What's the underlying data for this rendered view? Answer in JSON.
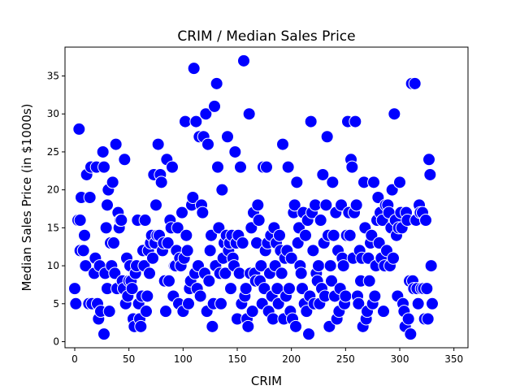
{
  "chart_data": {
    "type": "scatter",
    "title": "CRIM / Median Sales Price",
    "xlabel": "CRIM",
    "ylabel": "Median Sales Price (in $1000s)",
    "xlim": [
      -9,
      363
    ],
    "ylim": [
      -0.8,
      38.8
    ],
    "xticks": [
      0,
      50,
      100,
      150,
      200,
      250,
      300,
      350
    ],
    "yticks": [
      0,
      5,
      10,
      15,
      20,
      25,
      30,
      35
    ],
    "grid": false,
    "legend": "none",
    "marker_color": "#0000ff",
    "marker_edge": "#ffffff",
    "series": [
      {
        "points": [
          [
            0,
            7
          ],
          [
            1,
            5
          ],
          [
            3,
            16
          ],
          [
            4,
            28
          ],
          [
            5,
            16
          ],
          [
            5,
            12
          ],
          [
            6,
            19
          ],
          [
            8,
            12
          ],
          [
            9,
            14
          ],
          [
            10,
            10
          ],
          [
            11,
            22
          ],
          [
            13,
            5
          ],
          [
            14,
            19
          ],
          [
            15,
            23
          ],
          [
            16,
            5
          ],
          [
            18,
            9
          ],
          [
            19,
            11
          ],
          [
            20,
            23
          ],
          [
            21,
            5
          ],
          [
            22,
            3
          ],
          [
            23,
            10
          ],
          [
            24,
            4
          ],
          [
            26,
            25
          ],
          [
            27,
            1
          ],
          [
            27,
            23
          ],
          [
            28,
            9
          ],
          [
            29,
            15
          ],
          [
            30,
            18
          ],
          [
            30,
            7
          ],
          [
            31,
            20
          ],
          [
            32,
            4
          ],
          [
            33,
            13
          ],
          [
            34,
            10
          ],
          [
            35,
            21
          ],
          [
            36,
            13
          ],
          [
            37,
            9
          ],
          [
            38,
            26
          ],
          [
            39,
            7
          ],
          [
            40,
            17
          ],
          [
            41,
            15
          ],
          [
            42,
            16
          ],
          [
            43,
            16
          ],
          [
            44,
            8
          ],
          [
            45,
            7
          ],
          [
            46,
            24
          ],
          [
            47,
            5
          ],
          [
            48,
            11
          ],
          [
            49,
            6
          ],
          [
            50,
            8
          ],
          [
            51,
            10
          ],
          [
            52,
            8
          ],
          [
            53,
            7
          ],
          [
            54,
            3
          ],
          [
            55,
            2
          ],
          [
            56,
            9
          ],
          [
            57,
            10
          ],
          [
            58,
            16
          ],
          [
            59,
            5
          ],
          [
            60,
            3
          ],
          [
            61,
            2
          ],
          [
            62,
            6
          ],
          [
            63,
            12
          ],
          [
            64,
            10
          ],
          [
            65,
            16
          ],
          [
            66,
            4
          ],
          [
            67,
            6
          ],
          [
            68,
            12
          ],
          [
            69,
            9
          ],
          [
            70,
            13
          ],
          [
            71,
            14
          ],
          [
            72,
            11
          ],
          [
            73,
            22
          ],
          [
            74,
            13
          ],
          [
            75,
            18
          ],
          [
            76,
            14
          ],
          [
            77,
            26
          ],
          [
            78,
            14
          ],
          [
            79,
            22
          ],
          [
            80,
            21
          ],
          [
            81,
            12
          ],
          [
            82,
            13
          ],
          [
            83,
            8
          ],
          [
            84,
            4
          ],
          [
            85,
            24
          ],
          [
            86,
            13
          ],
          [
            87,
            8
          ],
          [
            88,
            16
          ],
          [
            89,
            15
          ],
          [
            90,
            23
          ],
          [
            91,
            6
          ],
          [
            92,
            10
          ],
          [
            93,
            10
          ],
          [
            94,
            12
          ],
          [
            95,
            15
          ],
          [
            96,
            5
          ],
          [
            97,
            11
          ],
          [
            98,
            10
          ],
          [
            99,
            17
          ],
          [
            100,
            4
          ],
          [
            101,
            11
          ],
          [
            102,
            29
          ],
          [
            103,
            14
          ],
          [
            104,
            12
          ],
          [
            105,
            5
          ],
          [
            106,
            7
          ],
          [
            107,
            8
          ],
          [
            108,
            18
          ],
          [
            109,
            19
          ],
          [
            110,
            36
          ],
          [
            111,
            9
          ],
          [
            112,
            29
          ],
          [
            113,
            7
          ],
          [
            114,
            10
          ],
          [
            115,
            27
          ],
          [
            116,
            6
          ],
          [
            117,
            18
          ],
          [
            118,
            17
          ],
          [
            119,
            27
          ],
          [
            120,
            9
          ],
          [
            121,
            30
          ],
          [
            122,
            4
          ],
          [
            123,
            26
          ],
          [
            124,
            8
          ],
          [
            125,
            12
          ],
          [
            126,
            14
          ],
          [
            127,
            2
          ],
          [
            128,
            5
          ],
          [
            129,
            31
          ],
          [
            130,
            10
          ],
          [
            131,
            34
          ],
          [
            132,
            23
          ],
          [
            133,
            15
          ],
          [
            134,
            9
          ],
          [
            135,
            5
          ],
          [
            136,
            20
          ],
          [
            137,
            11
          ],
          [
            138,
            13
          ],
          [
            139,
            9
          ],
          [
            140,
            14
          ],
          [
            141,
            27
          ],
          [
            142,
            12
          ],
          [
            143,
            13
          ],
          [
            144,
            7
          ],
          [
            145,
            14
          ],
          [
            146,
            11
          ],
          [
            147,
            10
          ],
          [
            148,
            25
          ],
          [
            149,
            13
          ],
          [
            150,
            3
          ],
          [
            151,
            14
          ],
          [
            152,
            9
          ],
          [
            153,
            23
          ],
          [
            154,
            5
          ],
          [
            155,
            13
          ],
          [
            156,
            37
          ],
          [
            157,
            6
          ],
          [
            158,
            7
          ],
          [
            159,
            3
          ],
          [
            160,
            2
          ],
          [
            161,
            30
          ],
          [
            162,
            9
          ],
          [
            163,
            15
          ],
          [
            164,
            4
          ],
          [
            165,
            17
          ],
          [
            166,
            9
          ],
          [
            167,
            8
          ],
          [
            168,
            13
          ],
          [
            169,
            18
          ],
          [
            170,
            16
          ],
          [
            171,
            8
          ],
          [
            172,
            10
          ],
          [
            173,
            5
          ],
          [
            174,
            23
          ],
          [
            175,
            7
          ],
          [
            176,
            12
          ],
          [
            177,
            23
          ],
          [
            178,
            13
          ],
          [
            179,
            4
          ],
          [
            180,
            9
          ],
          [
            181,
            14
          ],
          [
            182,
            6
          ],
          [
            183,
            3
          ],
          [
            184,
            15
          ],
          [
            185,
            10
          ],
          [
            186,
            13
          ],
          [
            187,
            7
          ],
          [
            188,
            5
          ],
          [
            189,
            14
          ],
          [
            190,
            12
          ],
          [
            191,
            9
          ],
          [
            192,
            26
          ],
          [
            193,
            3
          ],
          [
            194,
            11
          ],
          [
            195,
            6
          ],
          [
            196,
            12
          ],
          [
            197,
            23
          ],
          [
            198,
            7
          ],
          [
            199,
            4
          ],
          [
            200,
            11
          ],
          [
            201,
            3
          ],
          [
            202,
            17
          ],
          [
            203,
            18
          ],
          [
            204,
            2
          ],
          [
            205,
            21
          ],
          [
            206,
            13
          ],
          [
            207,
            15
          ],
          [
            208,
            10
          ],
          [
            209,
            9
          ],
          [
            210,
            7
          ],
          [
            211,
            17
          ],
          [
            212,
            5
          ],
          [
            213,
            14
          ],
          [
            214,
            4
          ],
          [
            215,
            16
          ],
          [
            216,
            1
          ],
          [
            217,
            6
          ],
          [
            218,
            29
          ],
          [
            219,
            17
          ],
          [
            220,
            12
          ],
          [
            221,
            5
          ],
          [
            222,
            18
          ],
          [
            223,
            9
          ],
          [
            224,
            8
          ],
          [
            225,
            10
          ],
          [
            226,
            5
          ],
          [
            227,
            16
          ],
          [
            228,
            7
          ],
          [
            229,
            22
          ],
          [
            230,
            13
          ],
          [
            231,
            6
          ],
          [
            232,
            18
          ],
          [
            233,
            27
          ],
          [
            234,
            14
          ],
          [
            235,
            2
          ],
          [
            236,
            10
          ],
          [
            237,
            8
          ],
          [
            238,
            21
          ],
          [
            239,
            14
          ],
          [
            240,
            6
          ],
          [
            241,
            17
          ],
          [
            242,
            3
          ],
          [
            243,
            12
          ],
          [
            244,
            4
          ],
          [
            245,
            7
          ],
          [
            246,
            18
          ],
          [
            247,
            11
          ],
          [
            248,
            10
          ],
          [
            249,
            5
          ],
          [
            250,
            6
          ],
          [
            251,
            14
          ],
          [
            252,
            29
          ],
          [
            253,
            17
          ],
          [
            254,
            14
          ],
          [
            255,
            24
          ],
          [
            256,
            23
          ],
          [
            257,
            11
          ],
          [
            258,
            17
          ],
          [
            259,
            29
          ],
          [
            260,
            18
          ],
          [
            261,
            6
          ],
          [
            262,
            5
          ],
          [
            263,
            12
          ],
          [
            264,
            8
          ],
          [
            265,
            11
          ],
          [
            266,
            2
          ],
          [
            267,
            21
          ],
          [
            268,
            15
          ],
          [
            269,
            3
          ],
          [
            270,
            4
          ],
          [
            271,
            11
          ],
          [
            272,
            8
          ],
          [
            273,
            13
          ],
          [
            274,
            14
          ],
          [
            275,
            5
          ],
          [
            276,
            21
          ],
          [
            277,
            6
          ],
          [
            278,
            10
          ],
          [
            279,
            16
          ],
          [
            280,
            19
          ],
          [
            281,
            13
          ],
          [
            282,
            17
          ],
          [
            283,
            11
          ],
          [
            284,
            16
          ],
          [
            285,
            4
          ],
          [
            286,
            10
          ],
          [
            287,
            18
          ],
          [
            288,
            12
          ],
          [
            289,
            18
          ],
          [
            290,
            17
          ],
          [
            291,
            10
          ],
          [
            292,
            15
          ],
          [
            293,
            20
          ],
          [
            294,
            11
          ],
          [
            295,
            30
          ],
          [
            296,
            16
          ],
          [
            297,
            14
          ],
          [
            298,
            6
          ],
          [
            299,
            15
          ],
          [
            300,
            21
          ],
          [
            301,
            17
          ],
          [
            302,
            15
          ],
          [
            303,
            5
          ],
          [
            304,
            4
          ],
          [
            305,
            2
          ],
          [
            306,
            17
          ],
          [
            307,
            16
          ],
          [
            308,
            3
          ],
          [
            309,
            8
          ],
          [
            310,
            1
          ],
          [
            311,
            34
          ],
          [
            312,
            8
          ],
          [
            313,
            7
          ],
          [
            314,
            34
          ],
          [
            315,
            16
          ],
          [
            316,
            7
          ],
          [
            317,
            5
          ],
          [
            318,
            18
          ],
          [
            319,
            17
          ],
          [
            320,
            7
          ],
          [
            321,
            17
          ],
          [
            322,
            7
          ],
          [
            323,
            3
          ],
          [
            324,
            16
          ],
          [
            325,
            7
          ],
          [
            326,
            3
          ],
          [
            327,
            24
          ],
          [
            328,
            22
          ],
          [
            329,
            10
          ],
          [
            330,
            5
          ]
        ]
      }
    ]
  }
}
